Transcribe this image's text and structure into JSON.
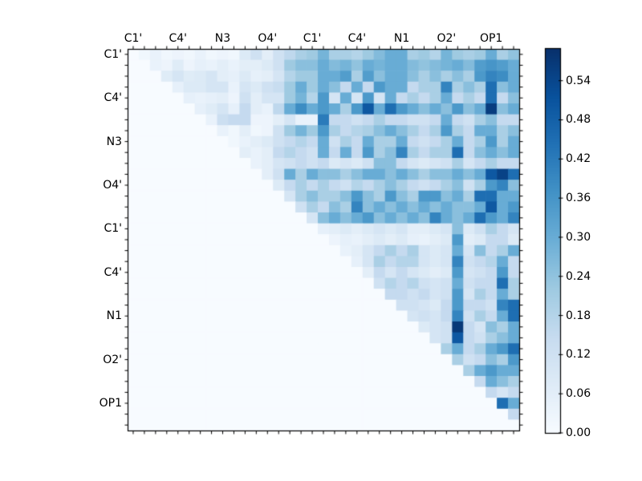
{
  "figure": {
    "kind": "matplotlib-style heatmap figure",
    "background": "#ffffff"
  },
  "chart_data": {
    "type": "heatmap",
    "title": "",
    "xlabel": "",
    "ylabel": "",
    "matrix_size": 35,
    "triangle": "upper",
    "grid": false,
    "x_tick_labels": [
      "C1'",
      "C4'",
      "N3",
      "O4'",
      "C1'",
      "C4'",
      "N1",
      "O2'",
      "OP1"
    ],
    "y_tick_labels": [
      "C1'",
      "C4'",
      "N3",
      "O4'",
      "C1'",
      "C4'",
      "N1",
      "O2'",
      "OP1"
    ],
    "tick_label_interval_cells": 4,
    "minor_tick_every_cell": true,
    "colormap": "Blues",
    "colormap_stops": [
      "#f7fbff",
      "#deebf7",
      "#c6dbef",
      "#9ecae1",
      "#6baed6",
      "#4292c6",
      "#2171b5",
      "#08519c",
      "#08306b"
    ],
    "vmin": 0.0,
    "vmax": 0.59,
    "colorbar_position": "right",
    "colorbar_tick_labels": [
      "0.54",
      "0.48",
      "0.42",
      "0.36",
      "0.30",
      "0.24",
      "0.18",
      "0.12",
      "0.06",
      "0.00"
    ],
    "colorbar_tick_values": [
      0.54,
      0.48,
      0.42,
      0.36,
      0.3,
      0.24,
      0.18,
      0.12,
      0.06,
      0.0
    ],
    "matrix": [
      [
        0,
        0.02,
        0.04,
        0.02,
        0.03,
        0.02,
        0.04,
        0.02,
        0.03,
        0.02,
        0.08,
        0.12,
        0.06,
        0.12,
        0.16,
        0.2,
        0.22,
        0.28,
        0.2,
        0.2,
        0.18,
        0.22,
        0.26,
        0.3,
        0.3,
        0.2,
        0.22,
        0.18,
        0.28,
        0.22,
        0.2,
        0.22,
        0.3,
        0.2,
        0.24
      ],
      [
        0,
        0,
        0.04,
        0.03,
        0.07,
        0.03,
        0.05,
        0.04,
        0.06,
        0.04,
        0.06,
        0.06,
        0.08,
        0.12,
        0.22,
        0.25,
        0.25,
        0.3,
        0.26,
        0.28,
        0.24,
        0.3,
        0.28,
        0.3,
        0.3,
        0.26,
        0.24,
        0.26,
        0.28,
        0.3,
        0.26,
        0.34,
        0.36,
        0.34,
        0.3
      ],
      [
        0,
        0,
        0,
        0.07,
        0.1,
        0.07,
        0.08,
        0.1,
        0.06,
        0.05,
        0.08,
        0.05,
        0.06,
        0.1,
        0.18,
        0.22,
        0.22,
        0.3,
        0.3,
        0.34,
        0.2,
        0.34,
        0.25,
        0.3,
        0.3,
        0.25,
        0.2,
        0.25,
        0.2,
        0.25,
        0.2,
        0.35,
        0.4,
        0.38,
        0.3
      ],
      [
        0,
        0,
        0,
        0,
        0.05,
        0.08,
        0.08,
        0.1,
        0.1,
        0.04,
        0.1,
        0.08,
        0.12,
        0.14,
        0.22,
        0.3,
        0.22,
        0.3,
        0.25,
        0.15,
        0.3,
        0.15,
        0.35,
        0.3,
        0.3,
        0.15,
        0.2,
        0.2,
        0.4,
        0.2,
        0.25,
        0.2,
        0.45,
        0.25,
        0.3
      ],
      [
        0,
        0,
        0,
        0,
        0,
        0.05,
        0.04,
        0.05,
        0.06,
        0.03,
        0.12,
        0.06,
        0.1,
        0.1,
        0.22,
        0.28,
        0.18,
        0.35,
        0.1,
        0.3,
        0.1,
        0.35,
        0.1,
        0.3,
        0.15,
        0.2,
        0.15,
        0.2,
        0.3,
        0.15,
        0.2,
        0.15,
        0.45,
        0.15,
        0.25
      ],
      [
        0,
        0,
        0,
        0,
        0,
        0,
        0.05,
        0.07,
        0.1,
        0.05,
        0.15,
        0.06,
        0.04,
        0.16,
        0.3,
        0.38,
        0.3,
        0.35,
        0.3,
        0.2,
        0.35,
        0.5,
        0.3,
        0.45,
        0.35,
        0.3,
        0.25,
        0.3,
        0.25,
        0.35,
        0.25,
        0.3,
        0.56,
        0.25,
        0.3
      ],
      [
        0,
        0,
        0,
        0,
        0,
        0,
        0,
        0.04,
        0.13,
        0.15,
        0.15,
        0.03,
        0.03,
        0.06,
        0.1,
        0.04,
        0.04,
        0.42,
        0.15,
        0.15,
        0.12,
        0.15,
        0.2,
        0.15,
        0.15,
        0.12,
        0.12,
        0.15,
        0.3,
        0.15,
        0.12,
        0.2,
        0.25,
        0.15,
        0.15
      ],
      [
        0,
        0,
        0,
        0,
        0,
        0,
        0,
        0,
        0.04,
        0.02,
        0.06,
        0.02,
        0.03,
        0.12,
        0.22,
        0.28,
        0.22,
        0.35,
        0.2,
        0.15,
        0.18,
        0.2,
        0.25,
        0.3,
        0.25,
        0.2,
        0.15,
        0.2,
        0.35,
        0.2,
        0.15,
        0.3,
        0.3,
        0.2,
        0.25
      ],
      [
        0,
        0,
        0,
        0,
        0,
        0,
        0,
        0,
        0,
        0.02,
        0.04,
        0.06,
        0.08,
        0.12,
        0.15,
        0.18,
        0.15,
        0.3,
        0.12,
        0.2,
        0.15,
        0.3,
        0.2,
        0.2,
        0.3,
        0.15,
        0.12,
        0.15,
        0.2,
        0.3,
        0.15,
        0.2,
        0.35,
        0.2,
        0.3
      ],
      [
        0,
        0,
        0,
        0,
        0,
        0,
        0,
        0,
        0,
        0,
        0.06,
        0.04,
        0.06,
        0.15,
        0.18,
        0.15,
        0.12,
        0.3,
        0.15,
        0.3,
        0.15,
        0.35,
        0.2,
        0.25,
        0.4,
        0.2,
        0.15,
        0.2,
        0.2,
        0.45,
        0.15,
        0.25,
        0.3,
        0.25,
        0.3
      ],
      [
        0,
        0,
        0,
        0,
        0,
        0,
        0,
        0,
        0,
        0,
        0,
        0.04,
        0.06,
        0.1,
        0.12,
        0.15,
        0.12,
        0.15,
        0.08,
        0.1,
        0.08,
        0.12,
        0.25,
        0.25,
        0.15,
        0.1,
        0.08,
        0.1,
        0.12,
        0.2,
        0.1,
        0.15,
        0.2,
        0.15,
        0.15
      ],
      [
        0,
        0,
        0,
        0,
        0,
        0,
        0,
        0,
        0,
        0,
        0,
        0,
        0.06,
        0.12,
        0.3,
        0.2,
        0.3,
        0.25,
        0.25,
        0.2,
        0.25,
        0.3,
        0.3,
        0.25,
        0.3,
        0.25,
        0.2,
        0.25,
        0.25,
        0.3,
        0.25,
        0.3,
        0.5,
        0.55,
        0.45
      ],
      [
        0,
        0,
        0,
        0,
        0,
        0,
        0,
        0,
        0,
        0,
        0,
        0,
        0,
        0.08,
        0.15,
        0.2,
        0.15,
        0.2,
        0.15,
        0.12,
        0.18,
        0.15,
        0.2,
        0.25,
        0.2,
        0.15,
        0.12,
        0.15,
        0.2,
        0.25,
        0.12,
        0.2,
        0.35,
        0.4,
        0.25
      ],
      [
        0,
        0,
        0,
        0,
        0,
        0,
        0,
        0,
        0,
        0,
        0,
        0,
        0,
        0,
        0.1,
        0.2,
        0.25,
        0.2,
        0.2,
        0.25,
        0.35,
        0.25,
        0.2,
        0.35,
        0.25,
        0.2,
        0.35,
        0.35,
        0.25,
        0.3,
        0.2,
        0.45,
        0.45,
        0.3,
        0.3
      ],
      [
        0,
        0,
        0,
        0,
        0,
        0,
        0,
        0,
        0,
        0,
        0,
        0,
        0,
        0,
        0,
        0.12,
        0.2,
        0.15,
        0.25,
        0.2,
        0.4,
        0.25,
        0.3,
        0.25,
        0.3,
        0.25,
        0.3,
        0.25,
        0.3,
        0.25,
        0.25,
        0.3,
        0.5,
        0.3,
        0.35
      ],
      [
        0,
        0,
        0,
        0,
        0,
        0,
        0,
        0,
        0,
        0,
        0,
        0,
        0,
        0,
        0,
        0,
        0.1,
        0.25,
        0.3,
        0.25,
        0.3,
        0.35,
        0.25,
        0.3,
        0.25,
        0.3,
        0.25,
        0.4,
        0.3,
        0.25,
        0.3,
        0.45,
        0.35,
        0.3,
        0.4
      ],
      [
        0,
        0,
        0,
        0,
        0,
        0,
        0,
        0,
        0,
        0,
        0,
        0,
        0,
        0,
        0,
        0,
        0,
        0.05,
        0.06,
        0.08,
        0.06,
        0.08,
        0.1,
        0.08,
        0.1,
        0.06,
        0.06,
        0.08,
        0.1,
        0.25,
        0.08,
        0.12,
        0.2,
        0.15,
        0.1
      ],
      [
        0,
        0,
        0,
        0,
        0,
        0,
        0,
        0,
        0,
        0,
        0,
        0,
        0,
        0,
        0,
        0,
        0,
        0,
        0.03,
        0.05,
        0.04,
        0.06,
        0.08,
        0.06,
        0.08,
        0.05,
        0.04,
        0.06,
        0.08,
        0.35,
        0.06,
        0.08,
        0.15,
        0.15,
        0.08
      ],
      [
        0,
        0,
        0,
        0,
        0,
        0,
        0,
        0,
        0,
        0,
        0,
        0,
        0,
        0,
        0,
        0,
        0,
        0,
        0,
        0.04,
        0.06,
        0.1,
        0.15,
        0.2,
        0.15,
        0.2,
        0.1,
        0.08,
        0.1,
        0.3,
        0.1,
        0.25,
        0.15,
        0.2,
        0.3
      ],
      [
        0,
        0,
        0,
        0,
        0,
        0,
        0,
        0,
        0,
        0,
        0,
        0,
        0,
        0,
        0,
        0,
        0,
        0,
        0,
        0,
        0.05,
        0.1,
        0.2,
        0.15,
        0.18,
        0.18,
        0.1,
        0.08,
        0.1,
        0.4,
        0.12,
        0.15,
        0.18,
        0.3,
        0.15
      ],
      [
        0,
        0,
        0,
        0,
        0,
        0,
        0,
        0,
        0,
        0,
        0,
        0,
        0,
        0,
        0,
        0,
        0,
        0,
        0,
        0,
        0,
        0.06,
        0.15,
        0.1,
        0.15,
        0.1,
        0.08,
        0.06,
        0.08,
        0.35,
        0.1,
        0.12,
        0.15,
        0.35,
        0.15
      ],
      [
        0,
        0,
        0,
        0,
        0,
        0,
        0,
        0,
        0,
        0,
        0,
        0,
        0,
        0,
        0,
        0,
        0,
        0,
        0,
        0,
        0,
        0,
        0.12,
        0.18,
        0.15,
        0.18,
        0.12,
        0.1,
        0.12,
        0.3,
        0.12,
        0.15,
        0.15,
        0.45,
        0.2
      ],
      [
        0,
        0,
        0,
        0,
        0,
        0,
        0,
        0,
        0,
        0,
        0,
        0,
        0,
        0,
        0,
        0,
        0,
        0,
        0,
        0,
        0,
        0,
        0,
        0.15,
        0.15,
        0.12,
        0.15,
        0.1,
        0.12,
        0.35,
        0.1,
        0.2,
        0.15,
        0.3,
        0.2
      ],
      [
        0,
        0,
        0,
        0,
        0,
        0,
        0,
        0,
        0,
        0,
        0,
        0,
        0,
        0,
        0,
        0,
        0,
        0,
        0,
        0,
        0,
        0,
        0,
        0,
        0.12,
        0.12,
        0.1,
        0.08,
        0.15,
        0.35,
        0.15,
        0.15,
        0.12,
        0.4,
        0.45
      ],
      [
        0,
        0,
        0,
        0,
        0,
        0,
        0,
        0,
        0,
        0,
        0,
        0,
        0,
        0,
        0,
        0,
        0,
        0,
        0,
        0,
        0,
        0,
        0,
        0,
        0,
        0.1,
        0.12,
        0.1,
        0.15,
        0.4,
        0.12,
        0.2,
        0.15,
        0.3,
        0.45
      ],
      [
        0,
        0,
        0,
        0,
        0,
        0,
        0,
        0,
        0,
        0,
        0,
        0,
        0,
        0,
        0,
        0,
        0,
        0,
        0,
        0,
        0,
        0,
        0,
        0,
        0,
        0,
        0.08,
        0.1,
        0.12,
        0.57,
        0.15,
        0.1,
        0.25,
        0.2,
        0.3
      ],
      [
        0,
        0,
        0,
        0,
        0,
        0,
        0,
        0,
        0,
        0,
        0,
        0,
        0,
        0,
        0,
        0,
        0,
        0,
        0,
        0,
        0,
        0,
        0,
        0,
        0,
        0,
        0,
        0.1,
        0.12,
        0.5,
        0.15,
        0.12,
        0.2,
        0.25,
        0.3
      ],
      [
        0,
        0,
        0,
        0,
        0,
        0,
        0,
        0,
        0,
        0,
        0,
        0,
        0,
        0,
        0,
        0,
        0,
        0,
        0,
        0,
        0,
        0,
        0,
        0,
        0,
        0,
        0,
        0,
        0.2,
        0.3,
        0.15,
        0.2,
        0.3,
        0.35,
        0.45
      ],
      [
        0,
        0,
        0,
        0,
        0,
        0,
        0,
        0,
        0,
        0,
        0,
        0,
        0,
        0,
        0,
        0,
        0,
        0,
        0,
        0,
        0,
        0,
        0,
        0,
        0,
        0,
        0,
        0,
        0,
        0.2,
        0.12,
        0.15,
        0.25,
        0.2,
        0.35
      ],
      [
        0,
        0,
        0,
        0,
        0,
        0,
        0,
        0,
        0,
        0,
        0,
        0,
        0,
        0,
        0,
        0,
        0,
        0,
        0,
        0,
        0,
        0,
        0,
        0,
        0,
        0,
        0,
        0,
        0,
        0,
        0.2,
        0.3,
        0.35,
        0.3,
        0.3
      ],
      [
        0,
        0,
        0,
        0,
        0,
        0,
        0,
        0,
        0,
        0,
        0,
        0,
        0,
        0,
        0,
        0,
        0,
        0,
        0,
        0,
        0,
        0,
        0,
        0,
        0,
        0,
        0,
        0,
        0,
        0,
        0,
        0.15,
        0.3,
        0.25,
        0.2
      ],
      [
        0,
        0,
        0,
        0,
        0,
        0,
        0,
        0,
        0,
        0,
        0,
        0,
        0,
        0,
        0,
        0,
        0,
        0,
        0,
        0,
        0,
        0,
        0,
        0,
        0,
        0,
        0,
        0,
        0,
        0,
        0,
        0,
        0.15,
        0.1,
        0.15
      ],
      [
        0,
        0,
        0,
        0,
        0,
        0,
        0,
        0,
        0,
        0,
        0,
        0,
        0,
        0,
        0,
        0,
        0,
        0,
        0,
        0,
        0,
        0,
        0,
        0,
        0,
        0,
        0,
        0,
        0,
        0,
        0,
        0,
        0,
        0.45,
        0.3
      ],
      [
        0,
        0,
        0,
        0,
        0,
        0,
        0,
        0,
        0,
        0,
        0,
        0,
        0,
        0,
        0,
        0,
        0,
        0,
        0,
        0,
        0,
        0,
        0,
        0,
        0,
        0,
        0,
        0,
        0,
        0,
        0,
        0,
        0,
        0,
        0.15
      ],
      [
        0,
        0,
        0,
        0,
        0,
        0,
        0,
        0,
        0,
        0,
        0,
        0,
        0,
        0,
        0,
        0,
        0,
        0,
        0,
        0,
        0,
        0,
        0,
        0,
        0,
        0,
        0,
        0,
        0,
        0,
        0,
        0,
        0,
        0,
        0
      ]
    ]
  }
}
